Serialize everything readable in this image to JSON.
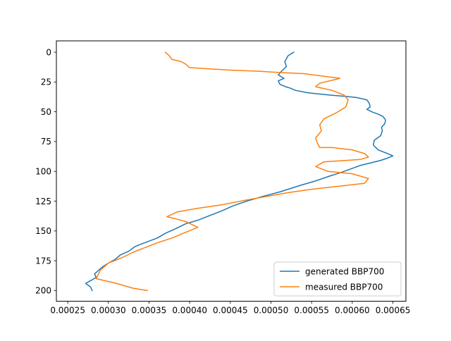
{
  "chart_data": {
    "type": "line",
    "title": "",
    "xlabel": "",
    "ylabel": "",
    "xlim": [
      0.000236,
      0.000666
    ],
    "ylim": [
      209,
      -9.5
    ],
    "y_inverted": true,
    "grid": false,
    "legend_position": "lower right",
    "x_ticks": [
      "0.00025",
      "0.00030",
      "0.00035",
      "0.00040",
      "0.00045",
      "0.00050",
      "0.00055",
      "0.00060",
      "0.00065"
    ],
    "x_tick_values": [
      0.00025,
      0.0003,
      0.00035,
      0.0004,
      0.00045,
      0.0005,
      0.00055,
      0.0006,
      0.00065
    ],
    "y_ticks": [
      "0",
      "25",
      "50",
      "75",
      "100",
      "125",
      "150",
      "175",
      "200"
    ],
    "y_tick_values": [
      0,
      25,
      50,
      75,
      100,
      125,
      150,
      175,
      200
    ],
    "series": [
      {
        "name": "generated BBP700",
        "color": "#1f77b4",
        "x": [
          0.000528,
          0.000521,
          0.000517,
          0.000519,
          0.000513,
          0.000509,
          0.000516,
          0.000509,
          0.000511,
          0.000518,
          0.000523,
          0.00053,
          0.000545,
          0.000558,
          0.000573,
          0.00059,
          0.000605,
          0.000618,
          0.000621,
          0.000622,
          0.000618,
          0.000624,
          0.000632,
          0.000638,
          0.000641,
          0.00064,
          0.000636,
          0.000637,
          0.000635,
          0.000627,
          0.000626,
          0.000632,
          0.000643,
          0.00065,
          0.000643,
          0.000634,
          0.000622,
          0.00061,
          0.000598,
          0.000586,
          0.000572,
          0.000555,
          0.000535,
          0.000512,
          0.00049,
          0.00047,
          0.000453,
          0.00044,
          0.000425,
          0.00041,
          0.000395,
          0.000383,
          0.00037,
          0.00036,
          0.000348,
          0.000333,
          0.000325,
          0.000315,
          0.000308,
          0.0003,
          0.000293,
          0.000288,
          0.000283,
          0.000285,
          0.00028,
          0.000272,
          0.000278,
          0.00028
        ],
        "y": [
          0,
          3,
          8,
          12,
          16,
          19,
          22,
          24,
          27,
          29,
          30,
          32,
          34,
          35,
          36,
          37,
          38,
          40,
          43,
          46,
          48,
          50,
          52,
          54,
          57,
          60,
          63,
          66,
          70,
          74,
          78,
          82,
          85,
          87,
          89,
          91,
          93,
          95,
          98,
          101,
          104,
          108,
          112,
          117,
          121,
          125,
          129,
          133,
          137,
          141,
          144,
          148,
          152,
          156,
          159,
          163,
          167,
          170,
          174,
          177,
          180,
          183,
          186,
          189,
          191,
          194,
          197,
          200
        ]
      },
      {
        "name": "measured BBP700",
        "color": "#ff7f0e",
        "x": [
          0.00037,
          0.000375,
          0.000378,
          0.00039,
          0.000395,
          0.0004,
          0.00045,
          0.000485,
          0.00051,
          0.00054,
          0.000585,
          0.00056,
          0.000555,
          0.000575,
          0.00059,
          0.000595,
          0.000592,
          0.00058,
          0.000565,
          0.00056,
          0.000562,
          0.000555,
          0.000557,
          0.00056,
          0.000575,
          0.0006,
          0.000615,
          0.00062,
          0.00061,
          0.000565,
          0.000555,
          0.00057,
          0.0006,
          0.00062,
          0.000615,
          0.00059,
          0.00055,
          0.00052,
          0.000495,
          0.00047,
          0.00044,
          0.00041,
          0.000385,
          0.000372,
          0.000395,
          0.00041,
          0.000392,
          0.000378,
          0.00036,
          0.000345,
          0.00033,
          0.000318,
          0.0003,
          0.00029,
          0.000285,
          0.00031,
          0.00033,
          0.000348
        ],
        "y": [
          0,
          3,
          6,
          8,
          10,
          13,
          15,
          16,
          17,
          18,
          22,
          26,
          29,
          32,
          36,
          40,
          46,
          51,
          56,
          61,
          66,
          72,
          76,
          80,
          80,
          82,
          85,
          88,
          90,
          92,
          96,
          100,
          102,
          106,
          110,
          112,
          115,
          118,
          121,
          124,
          128,
          131,
          134,
          138,
          142,
          147,
          152,
          156,
          160,
          164,
          168,
          172,
          177,
          183,
          190,
          194,
          198,
          200
        ]
      }
    ]
  }
}
